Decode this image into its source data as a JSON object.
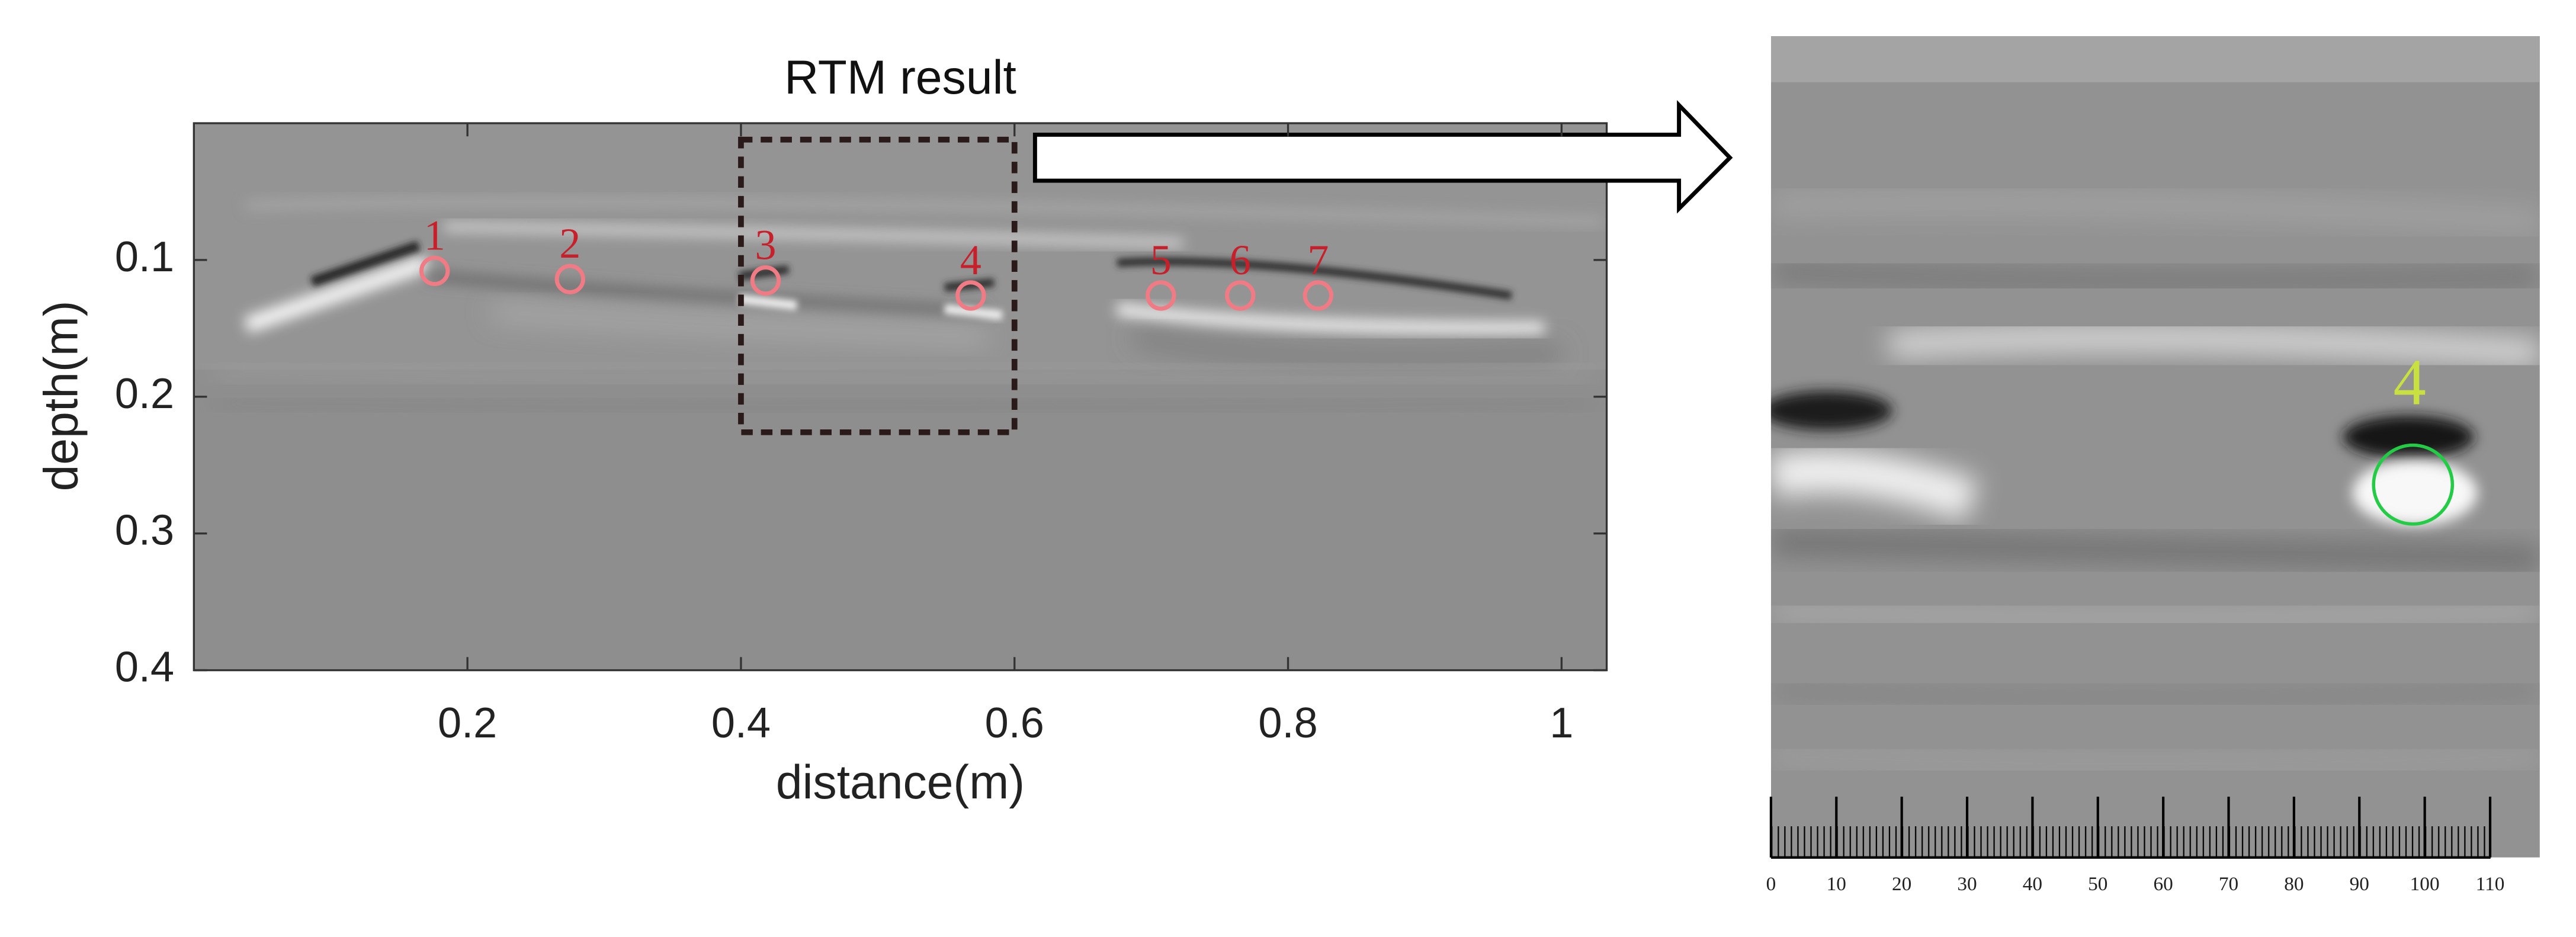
{
  "chart_data": {
    "type": "heatmap-annotated",
    "title": "RTM result",
    "xlabel": "distance(m)",
    "ylabel": "depth(m)",
    "xlim": [
      0,
      1.033
    ],
    "ylim": [
      0,
      0.4
    ],
    "yreversed": true,
    "xticks": [
      0.2,
      0.4,
      0.6,
      0.8,
      1
    ],
    "yticks": [
      0.1,
      0.2,
      0.3,
      0.4
    ],
    "marker_color": "#f07b84",
    "label_color": "#c8202a",
    "points": [
      {
        "label": "1",
        "x": 0.176,
        "y": 0.108
      },
      {
        "label": "2",
        "x": 0.275,
        "y": 0.114
      },
      {
        "label": "3",
        "x": 0.418,
        "y": 0.115
      },
      {
        "label": "4",
        "x": 0.568,
        "y": 0.126
      },
      {
        "label": "5",
        "x": 0.707,
        "y": 0.126
      },
      {
        "label": "6",
        "x": 0.765,
        "y": 0.126
      },
      {
        "label": "7",
        "x": 0.822,
        "y": 0.126
      }
    ],
    "highlight": {
      "xlim": [
        0.4,
        0.6
      ],
      "ylim": [
        0.012,
        0.226
      ],
      "color": "#2a1a1a"
    },
    "inset": {
      "xlim": [
        0,
        117.6
      ],
      "xticks": [
        0,
        10,
        20,
        30,
        40,
        50,
        60,
        70,
        80,
        90,
        100,
        110
      ],
      "marker_color": "#22cc44",
      "label_color": "#c8e040",
      "markers": [
        {
          "label": "4",
          "x": 98.2
        }
      ]
    }
  }
}
